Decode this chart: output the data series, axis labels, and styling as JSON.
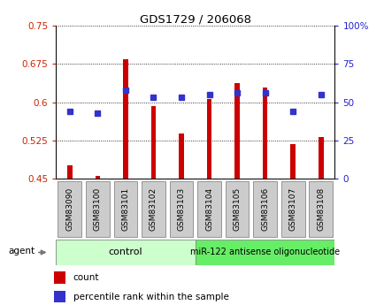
{
  "title": "GDS1729 / 206068",
  "categories": [
    "GSM83090",
    "GSM83100",
    "GSM83101",
    "GSM83102",
    "GSM83103",
    "GSM83104",
    "GSM83105",
    "GSM83106",
    "GSM83107",
    "GSM83108"
  ],
  "red_values": [
    0.475,
    0.455,
    0.685,
    0.593,
    0.538,
    0.607,
    0.638,
    0.628,
    0.518,
    0.532
  ],
  "blue_values_pct": [
    44,
    43,
    58,
    53,
    53,
    55,
    56,
    56,
    44,
    55
  ],
  "ylim_left": [
    0.45,
    0.75
  ],
  "ylim_right": [
    0,
    100
  ],
  "yticks_left": [
    0.45,
    0.525,
    0.6,
    0.675,
    0.75
  ],
  "yticks_right": [
    0,
    25,
    50,
    75,
    100
  ],
  "ytick_labels_left": [
    "0.45",
    "0.525",
    "0.6",
    "0.675",
    "0.75"
  ],
  "ytick_labels_right": [
    "0",
    "25",
    "50",
    "75",
    "100%"
  ],
  "control_n": 5,
  "treatment_n": 5,
  "control_label": "control",
  "treatment_label": "miR-122 antisense oligonucleotide",
  "agent_label": "agent",
  "legend_count": "count",
  "legend_pct": "percentile rank within the sample",
  "bar_color": "#cc0000",
  "blue_color": "#3333cc",
  "control_bg": "#ccffcc",
  "treatment_bg": "#66ee66",
  "bar_width": 0.18,
  "base_value": 0.45,
  "label_color_left": "#cc2200",
  "label_color_right": "#2222cc",
  "tick_box_color": "#cccccc",
  "tick_box_edge": "#888888"
}
